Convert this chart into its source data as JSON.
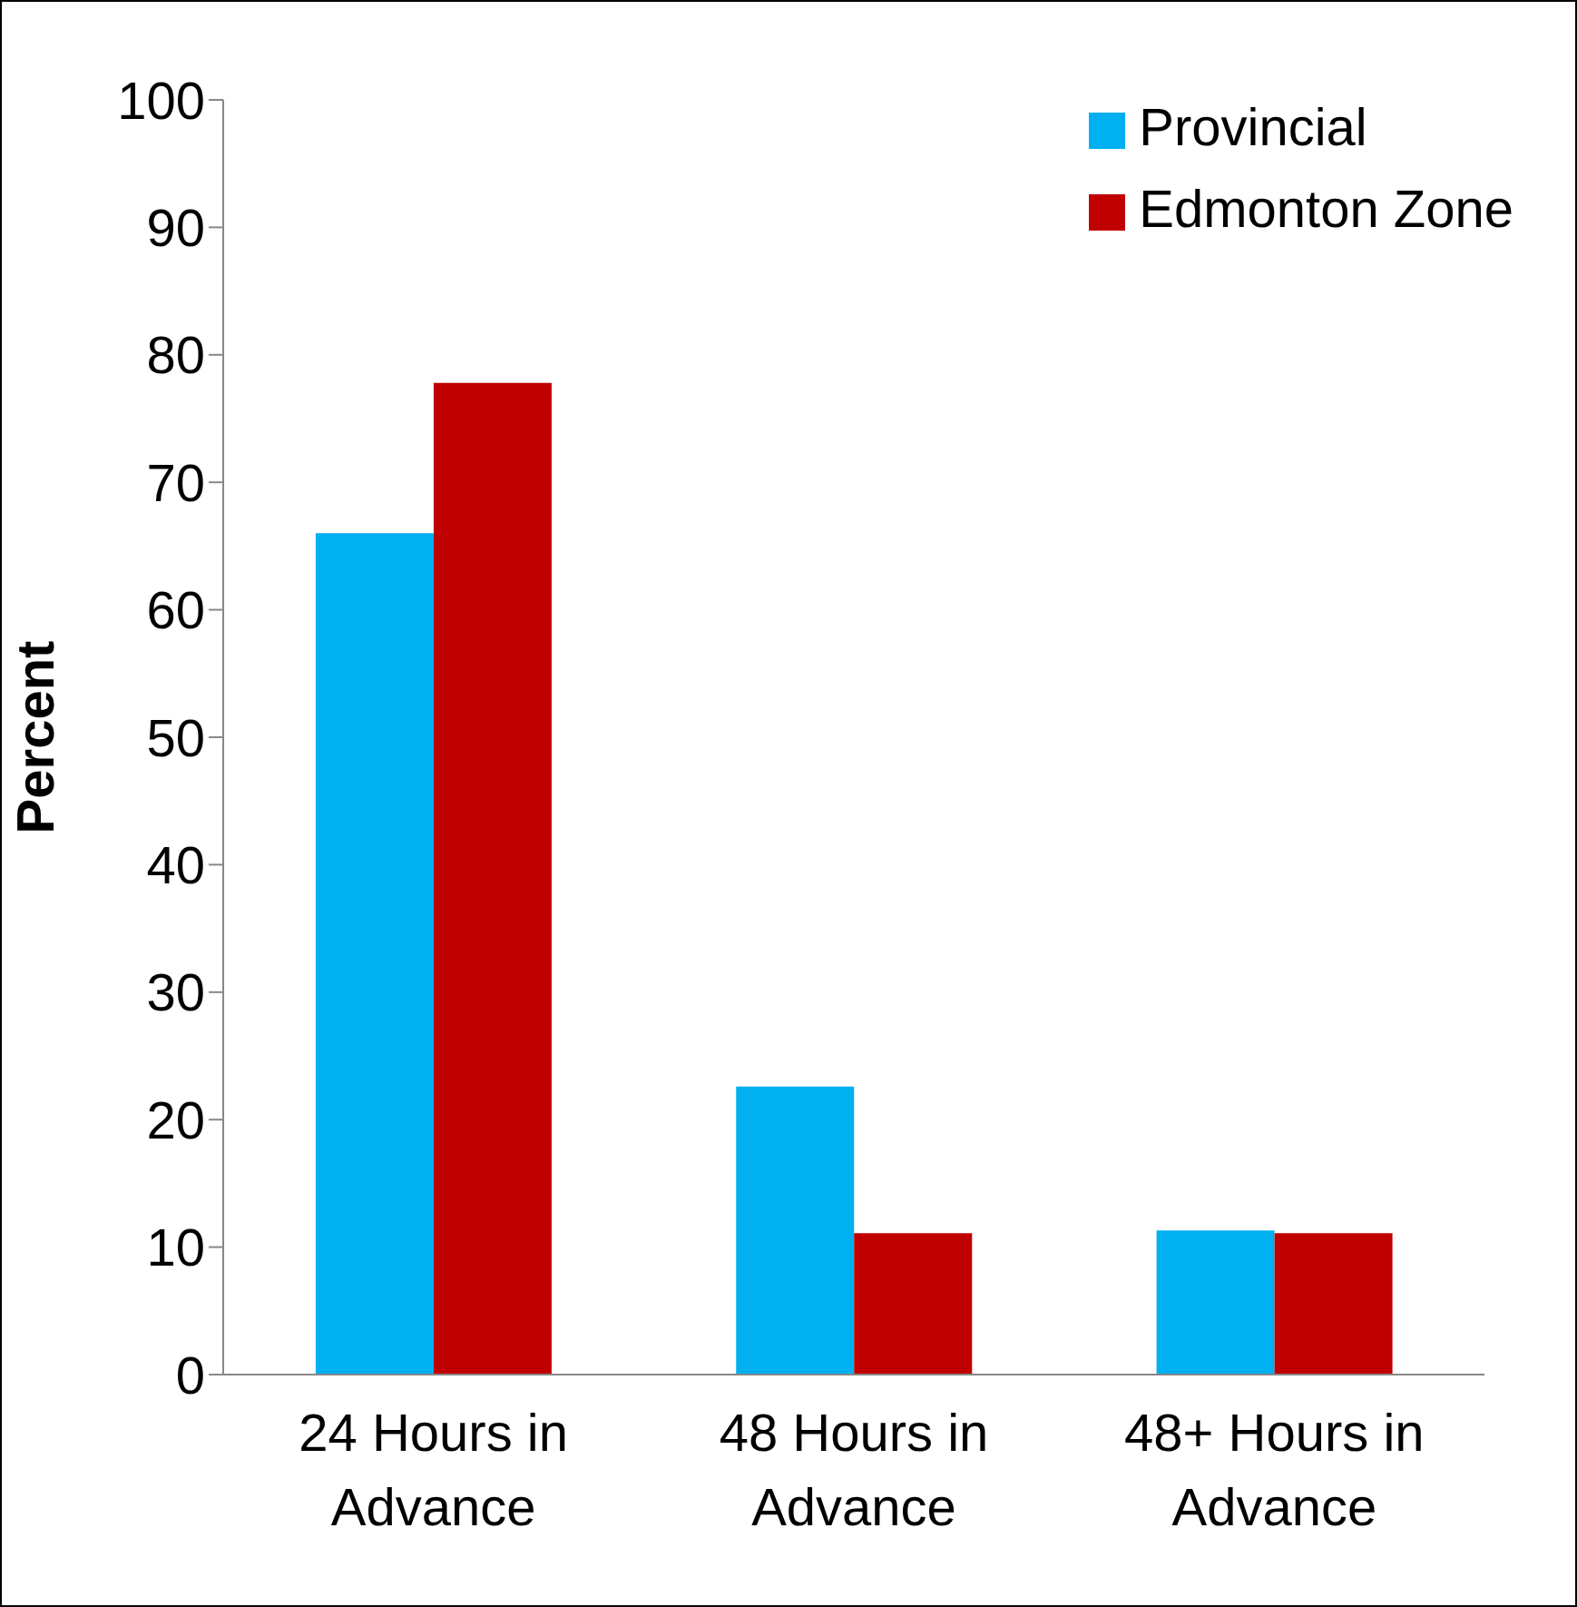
{
  "chart_data": {
    "type": "bar",
    "ylabel": "Percent",
    "categories": [
      "24 Hours in Advance",
      "48 Hours in Advance",
      "48+ Hours in Advance"
    ],
    "series": [
      {
        "name": "Provincial",
        "color": "#00b0f0",
        "values": [
          66,
          22.6,
          11.3
        ]
      },
      {
        "name": "Edmonton Zone",
        "color": "#c00000",
        "values": [
          77.8,
          11.1,
          11.1
        ]
      }
    ],
    "ylim": [
      0,
      100
    ],
    "yticks": [
      0,
      10,
      20,
      30,
      40,
      50,
      60,
      70,
      80,
      90,
      100
    ],
    "legend": "top right"
  }
}
